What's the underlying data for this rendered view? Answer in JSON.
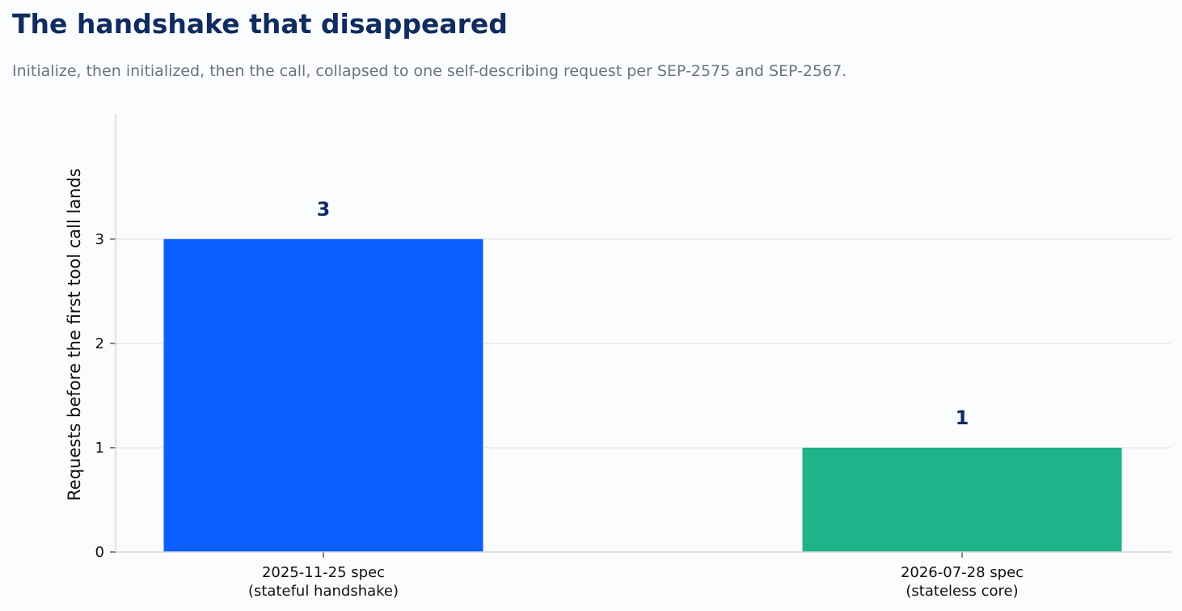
{
  "header": {
    "title": "The handshake that disappeared",
    "subtitle": "Initialize, then initialized, then the call, collapsed to one self-describing request per SEP-2575 and SEP-2567."
  },
  "colors": {
    "title": "#0f2c61",
    "subtitle": "#6b7280",
    "grid": "#e6e8ec",
    "axis": "#d3d6dc"
  },
  "chart_data": {
    "type": "bar",
    "categories": [
      [
        "2025-11-25 spec",
        "(stateful handshake)"
      ],
      [
        "2026-07-28 spec",
        "(stateless core)"
      ]
    ],
    "values": [
      3,
      1
    ],
    "bar_colors": [
      "#0b5fff",
      "#1eb388"
    ],
    "value_labels": [
      "3",
      "1"
    ],
    "ylabel": "Requests before the first tool call lands",
    "ylim": [
      0,
      4.2
    ],
    "yticks": [
      0,
      1,
      2,
      3
    ],
    "grid": true,
    "legend": "none"
  }
}
